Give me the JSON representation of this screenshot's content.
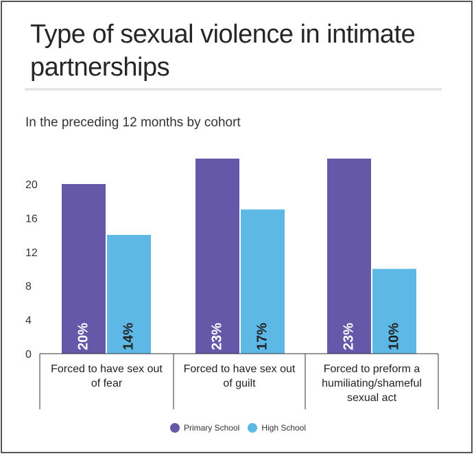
{
  "title": "Type of sexual violence in intimate partnerships",
  "subtitle": "In the preceding 12 months by cohort",
  "colors": {
    "primary_school": "#6658a8",
    "high_school": "#5db8e6"
  },
  "chart_data": {
    "type": "bar",
    "title": "Type of sexual violence in intimate partnerships",
    "subtitle": "In the preceding 12 months by cohort",
    "categories": [
      [
        "Forced to have sex out",
        "of fear"
      ],
      [
        "Forced to have sex out",
        "of guilt"
      ],
      [
        "Forced to preform a",
        "humiliating/shameful",
        "sexual act"
      ]
    ],
    "series": [
      {
        "name": "Primary School",
        "color": "#6658a8",
        "values": [
          20,
          23,
          23
        ],
        "labels": [
          "20%",
          "23%",
          "23%"
        ]
      },
      {
        "name": "High School",
        "color": "#5db8e6",
        "values": [
          14,
          17,
          10
        ],
        "labels": [
          "14%",
          "17%",
          "10%"
        ]
      }
    ],
    "yticks": [
      0,
      4,
      8,
      12,
      16,
      20
    ],
    "ylim": [
      0,
      24
    ],
    "xlabel": "",
    "ylabel": "",
    "grid": false,
    "legend": "bottom-center"
  },
  "legend": [
    {
      "label": "Primary School",
      "color": "#6658a8"
    },
    {
      "label": "High School",
      "color": "#5db8e6"
    }
  ]
}
